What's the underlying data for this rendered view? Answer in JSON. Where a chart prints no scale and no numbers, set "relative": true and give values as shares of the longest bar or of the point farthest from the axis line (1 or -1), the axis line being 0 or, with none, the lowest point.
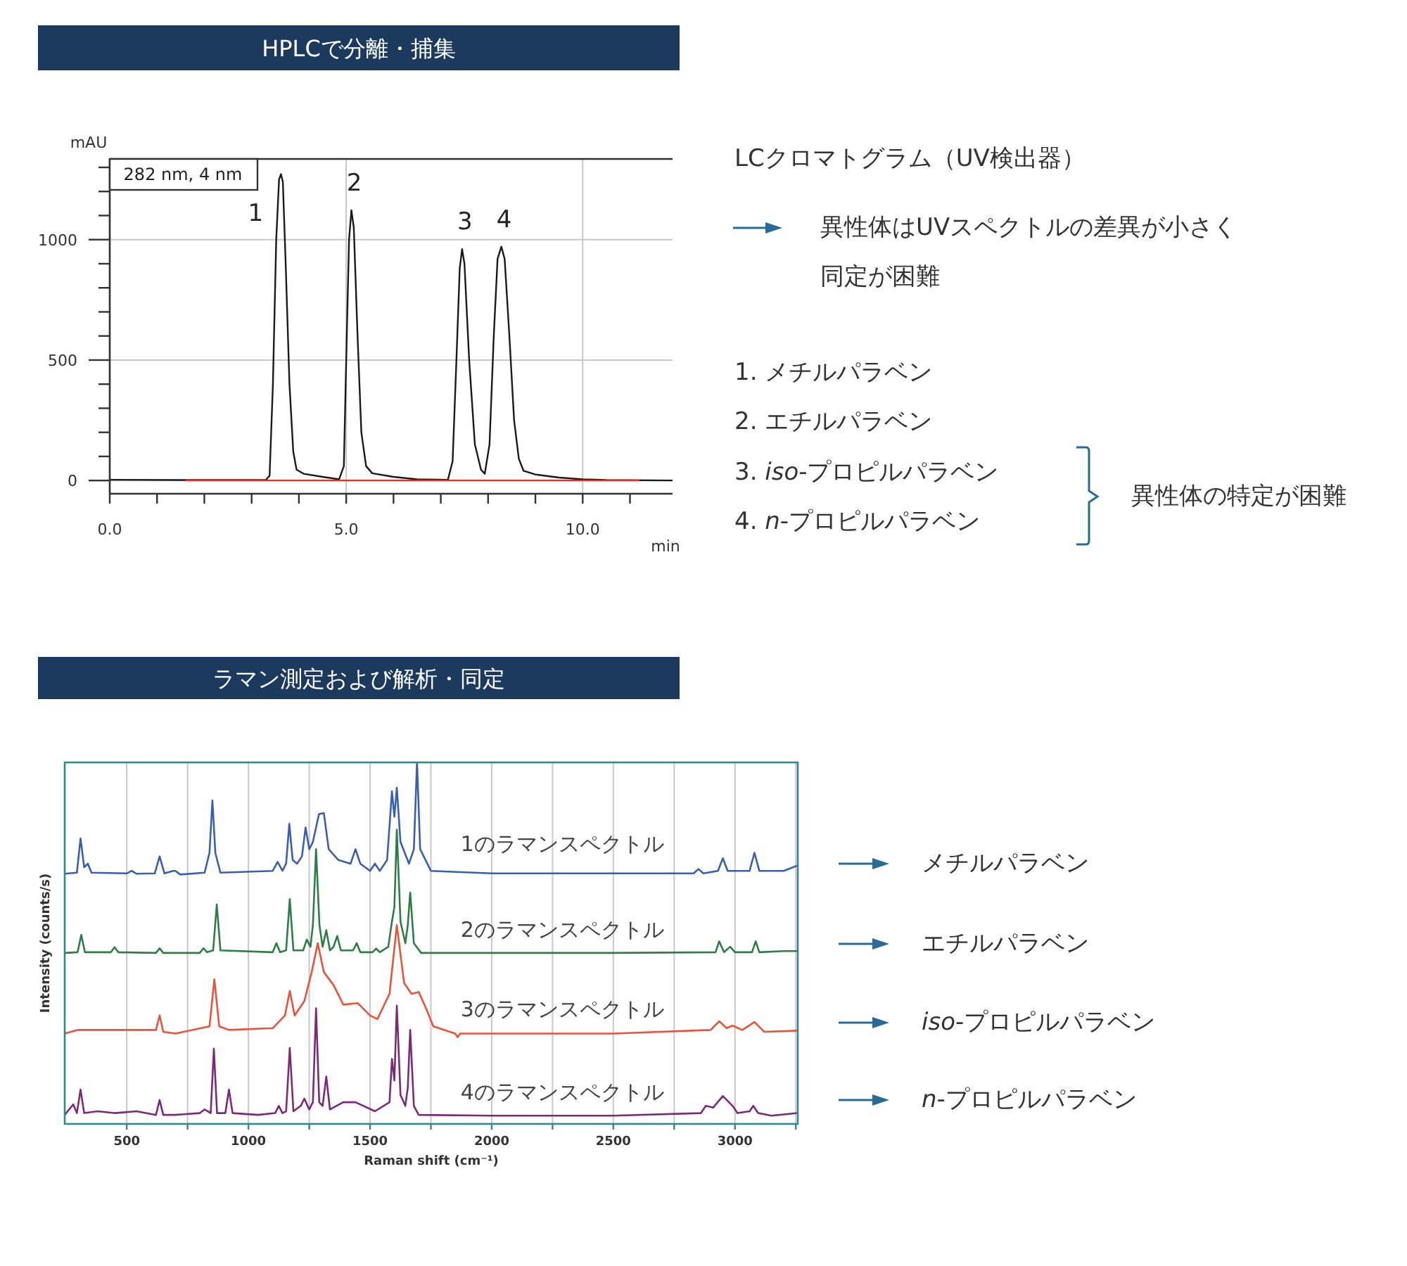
{
  "chart_data": [
    {
      "type": "line",
      "title": "HPLCで分離・捕集",
      "xlabel": "min",
      "ylabel": "mAU",
      "xlim": [
        0,
        11.9
      ],
      "ylim": [
        -55,
        1335
      ],
      "xticks": [
        {
          "value": 0,
          "label": "0.0"
        },
        {
          "value": 1,
          "label": null
        },
        {
          "value": 2,
          "label": null
        },
        {
          "value": 3,
          "label": null
        },
        {
          "value": 4,
          "label": null
        },
        {
          "value": 5,
          "label": "5.0"
        },
        {
          "value": 6,
          "label": null
        },
        {
          "value": 7,
          "label": null
        },
        {
          "value": 8,
          "label": null
        },
        {
          "value": 9,
          "label": null
        },
        {
          "value": 10,
          "label": "10.0"
        },
        {
          "value": 11,
          "label": null
        }
      ],
      "yticks": [
        0,
        {
          "value": 100,
          "label": null
        },
        {
          "value": 200,
          "label": null
        },
        {
          "value": 300,
          "label": null
        },
        {
          "value": 400,
          "label": null
        },
        500,
        {
          "value": 600,
          "label": null
        },
        {
          "value": 700,
          "label": null
        },
        {
          "value": 800,
          "label": null
        },
        {
          "value": 900,
          "label": null
        },
        1000,
        {
          "value": 1100,
          "label": null
        },
        {
          "value": 1200,
          "label": null
        },
        {
          "value": 1300,
          "label": null
        }
      ],
      "grid": true,
      "series": [
        {
          "color": "#1a1a1a",
          "x": [
            0,
            1.5,
            3.3,
            3.38,
            3.45,
            3.52,
            3.58,
            3.62,
            3.66,
            3.72,
            3.8,
            3.88,
            3.95,
            4.1,
            4.5,
            4.85,
            4.95,
            5.0,
            5.06,
            5.11,
            5.16,
            5.24,
            5.32,
            5.42,
            5.55,
            6.0,
            6.5,
            7.15,
            7.25,
            7.33,
            7.4,
            7.45,
            7.5,
            7.6,
            7.72,
            7.85,
            7.93,
            8.03,
            8.12,
            8.2,
            8.28,
            8.35,
            8.45,
            8.55,
            8.65,
            8.75,
            9.0,
            9.5,
            10.0,
            10.5,
            11.9
          ],
          "values": [
            3,
            2,
            2,
            20,
            400,
            1000,
            1250,
            1272,
            1240,
            900,
            400,
            120,
            45,
            28,
            15,
            5,
            60,
            500,
            1000,
            1122,
            1050,
            600,
            200,
            60,
            30,
            15,
            5,
            3,
            80,
            500,
            880,
            961,
            900,
            500,
            150,
            45,
            28,
            150,
            600,
            920,
            971,
            920,
            600,
            250,
            90,
            40,
            25,
            12,
            5,
            2,
            0
          ]
        },
        {
          "color": "#e0302a",
          "x": [
            1.6,
            11.2
          ],
          "values": [
            0,
            0
          ]
        }
      ],
      "annotations": [
        "282 nm, 4 nm",
        {
          "text": "1",
          "x": 3.62,
          "y": 1272
        },
        {
          "text": "2",
          "x": 5.11,
          "y": 1122
        },
        {
          "text": "3",
          "x": 7.45,
          "y": 961
        },
        {
          "text": "4",
          "x": 8.28,
          "y": 971
        },
        "LCクロマトグラム（UV検出器）",
        "異性体はUVスペクトルの差異が小さく",
        "同定が困難",
        "1. メチルパラベン",
        "2. エチルパラベン",
        "3. *iso*-プロピルパラベン",
        "4. *n*-プロピルパラベン",
        "異性体の特定が困難"
      ]
    },
    {
      "type": "line",
      "title": "ラマン測定および解析・同定",
      "xlabel": "Raman shift (cm⁻¹)",
      "ylabel": "Intensity (counts/s)",
      "relative": true,
      "xlim": [
        245,
        3258
      ],
      "xticks": [
        500,
        {
          "value": 750,
          "label": null
        },
        1000,
        {
          "value": 1250,
          "label": null
        },
        1500,
        {
          "value": 1750,
          "label": null
        },
        2000,
        {
          "value": 2250,
          "label": null
        },
        2500,
        {
          "value": 2750,
          "label": null
        },
        3000,
        {
          "value": 3250,
          "label": null
        }
      ],
      "grid": "x",
      "series": [
        {
          "name": "1のラマンスペクトル",
          "color": "#3a5fb0",
          "x": [
            245,
            295,
            310,
            325,
            340,
            355,
            500,
            520,
            540,
            615,
            635,
            655,
            690,
            700,
            720,
            820,
            840,
            852,
            864,
            885,
            1100,
            1120,
            1140,
            1155,
            1168,
            1182,
            1200,
            1220,
            1235,
            1250,
            1265,
            1290,
            1310,
            1330,
            1370,
            1420,
            1440,
            1460,
            1500,
            1520,
            1540,
            1570,
            1590,
            1600,
            1610,
            1625,
            1660,
            1680,
            1693,
            1706,
            1750,
            2000,
            2830,
            2850,
            2870,
            2930,
            2950,
            2970,
            3060,
            3080,
            3100,
            3200,
            3258
          ],
          "values": [
            0.692,
            0.695,
            0.79,
            0.71,
            0.72,
            0.695,
            0.693,
            0.7,
            0.692,
            0.693,
            0.74,
            0.693,
            0.7,
            0.7,
            0.69,
            0.695,
            0.75,
            0.895,
            0.75,
            0.695,
            0.7,
            0.725,
            0.7,
            0.72,
            0.83,
            0.73,
            0.72,
            0.74,
            0.82,
            0.76,
            0.78,
            0.857,
            0.86,
            0.76,
            0.73,
            0.72,
            0.76,
            0.72,
            0.7,
            0.72,
            0.7,
            0.73,
            0.92,
            0.85,
            0.93,
            0.78,
            0.72,
            0.76,
            1.0,
            0.76,
            0.7,
            0.693,
            0.693,
            0.705,
            0.693,
            0.7,
            0.735,
            0.7,
            0.7,
            0.75,
            0.7,
            0.7,
            0.715
          ]
        },
        {
          "name": "2のラマンスペクトル",
          "color": "#2e7d46",
          "x": [
            245,
            298,
            313,
            328,
            435,
            450,
            465,
            620,
            635,
            650,
            800,
            815,
            830,
            855,
            870,
            885,
            1100,
            1115,
            1130,
            1155,
            1170,
            1185,
            1225,
            1240,
            1255,
            1265,
            1278,
            1292,
            1305,
            1320,
            1335,
            1350,
            1365,
            1380,
            1430,
            1445,
            1460,
            1510,
            1525,
            1540,
            1575,
            1590,
            1600,
            1610,
            1625,
            1645,
            1655,
            1665,
            1680,
            1710,
            2000,
            2500,
            2920,
            2935,
            2955,
            2980,
            3000,
            3070,
            3085,
            3100,
            3200,
            3258
          ],
          "values": [
            0.473,
            0.475,
            0.523,
            0.475,
            0.475,
            0.489,
            0.475,
            0.473,
            0.486,
            0.473,
            0.473,
            0.486,
            0.475,
            0.48,
            0.607,
            0.48,
            0.475,
            0.5,
            0.475,
            0.48,
            0.622,
            0.48,
            0.48,
            0.51,
            0.49,
            0.55,
            0.76,
            0.55,
            0.49,
            0.536,
            0.48,
            0.49,
            0.52,
            0.48,
            0.48,
            0.5,
            0.475,
            0.475,
            0.485,
            0.475,
            0.49,
            0.56,
            0.6,
            0.814,
            0.56,
            0.5,
            0.55,
            0.64,
            0.5,
            0.473,
            0.473,
            0.473,
            0.475,
            0.505,
            0.475,
            0.49,
            0.475,
            0.475,
            0.505,
            0.475,
            0.478,
            0.478
          ]
        },
        {
          "name": "3のラマンスペクトル",
          "color": "#e8533a",
          "x": [
            245,
            300,
            450,
            620,
            635,
            650,
            700,
            840,
            860,
            880,
            920,
            1100,
            1150,
            1170,
            1190,
            1230,
            1260,
            1285,
            1310,
            1350,
            1390,
            1450,
            1500,
            1530,
            1580,
            1610,
            1640,
            1670,
            1700,
            1730,
            1760,
            1850,
            1860,
            1870,
            2000,
            2500,
            2900,
            2935,
            2965,
            2990,
            3030,
            3080,
            3120,
            3258
          ],
          "values": [
            0.25,
            0.26,
            0.26,
            0.26,
            0.3,
            0.255,
            0.25,
            0.27,
            0.4,
            0.27,
            0.26,
            0.265,
            0.3,
            0.368,
            0.3,
            0.34,
            0.42,
            0.5,
            0.42,
            0.384,
            0.33,
            0.334,
            0.3,
            0.29,
            0.36,
            0.55,
            0.39,
            0.36,
            0.365,
            0.32,
            0.27,
            0.25,
            0.24,
            0.25,
            0.25,
            0.25,
            0.26,
            0.284,
            0.265,
            0.272,
            0.26,
            0.282,
            0.255,
            0.258
          ]
        },
        {
          "name": "4のラマンスペクトル",
          "color": "#7b2a7a",
          "x": [
            245,
            280,
            295,
            310,
            325,
            380,
            450,
            540,
            620,
            635,
            650,
            700,
            800,
            820,
            845,
            858,
            871,
            905,
            920,
            935,
            1040,
            1110,
            1125,
            1140,
            1155,
            1170,
            1185,
            1215,
            1230,
            1250,
            1265,
            1278,
            1291,
            1305,
            1320,
            1335,
            1390,
            1440,
            1520,
            1580,
            1590,
            1600,
            1610,
            1625,
            1645,
            1655,
            1665,
            1680,
            1700,
            2000,
            2500,
            2860,
            2880,
            2910,
            2950,
            2990,
            3010,
            3060,
            3075,
            3095,
            3150,
            3258
          ],
          "values": [
            0.025,
            0.054,
            0.03,
            0.095,
            0.03,
            0.035,
            0.03,
            0.035,
            0.025,
            0.066,
            0.025,
            0.025,
            0.03,
            0.04,
            0.03,
            0.208,
            0.03,
            0.03,
            0.095,
            0.03,
            0.025,
            0.03,
            0.05,
            0.03,
            0.035,
            0.21,
            0.035,
            0.05,
            0.07,
            0.04,
            0.06,
            0.32,
            0.06,
            0.05,
            0.131,
            0.04,
            0.06,
            0.06,
            0.035,
            0.06,
            0.18,
            0.12,
            0.327,
            0.08,
            0.05,
            0.1,
            0.26,
            0.05,
            0.025,
            0.023,
            0.023,
            0.03,
            0.05,
            0.045,
            0.077,
            0.05,
            0.03,
            0.035,
            0.05,
            0.03,
            0.023,
            0.03
          ]
        }
      ],
      "annotations": [
        "メチルパラベン",
        "エチルパラベン",
        "*iso*-プロピルパラベン",
        "*n*-プロピルパラベン"
      ]
    }
  ]
}
